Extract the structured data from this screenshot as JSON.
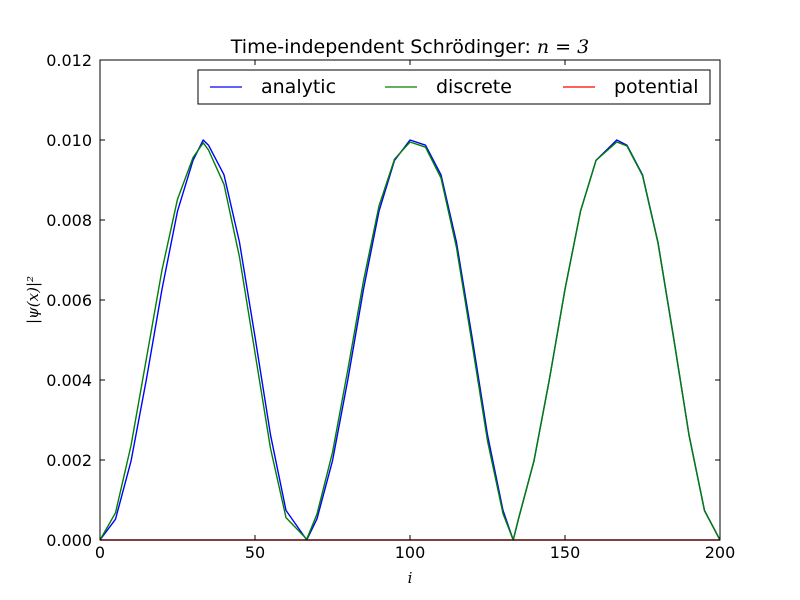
{
  "chart_data": {
    "type": "line",
    "title_prefix": "Time-independent Schrödinger: ",
    "title_math": "n = 3",
    "xlabel": "i",
    "ylabel": "|ψ(x)|²",
    "xlim": [
      0,
      200
    ],
    "ylim": [
      0,
      0.012
    ],
    "x_ticks": [
      0,
      50,
      100,
      150,
      200
    ],
    "x_tick_labels": [
      "0",
      "50",
      "100",
      "150",
      "200"
    ],
    "y_ticks": [
      0,
      0.002,
      0.004,
      0.006,
      0.008,
      0.01,
      0.012
    ],
    "y_tick_labels": [
      "0.000",
      "0.002",
      "0.004",
      "0.006",
      "0.008",
      "0.010",
      "0.012"
    ],
    "grid": false,
    "legend_placement": "top-right",
    "x": [
      0,
      5,
      10,
      15,
      20,
      25,
      30,
      33.3,
      35,
      40,
      45,
      50,
      55,
      60,
      66.7,
      70,
      75,
      80,
      85,
      90,
      95,
      100,
      105,
      110,
      115,
      120,
      125,
      130,
      133.3,
      135,
      140,
      145,
      150,
      155,
      160,
      166.7,
      170,
      175,
      180,
      185,
      190,
      195,
      200
    ],
    "series": [
      {
        "name": "analytic",
        "color": "#0000ff",
        "values": [
          0.0,
          0.00052,
          0.00197,
          0.00403,
          0.00627,
          0.00822,
          0.00949,
          0.01,
          0.00987,
          0.00913,
          0.00744,
          0.00508,
          0.00263,
          0.00074,
          0.0,
          0.00053,
          0.00198,
          0.00403,
          0.00627,
          0.00822,
          0.00949,
          0.01,
          0.00987,
          0.00913,
          0.00744,
          0.00508,
          0.00263,
          0.00074,
          0.0,
          0.00053,
          0.00198,
          0.00403,
          0.00627,
          0.00822,
          0.00949,
          0.01,
          0.00987,
          0.00913,
          0.00744,
          0.00508,
          0.00263,
          0.00074,
          0.0
        ]
      },
      {
        "name": "discrete",
        "color": "#008000",
        "values": [
          0.0,
          0.00068,
          0.00236,
          0.00455,
          0.00675,
          0.00852,
          0.00956,
          0.00993,
          0.00975,
          0.00889,
          0.00707,
          0.00468,
          0.00229,
          0.00056,
          2e-05,
          0.00065,
          0.00219,
          0.00428,
          0.00648,
          0.00835,
          0.00952,
          0.00995,
          0.00982,
          0.00905,
          0.00731,
          0.00492,
          0.00248,
          0.00066,
          0.0,
          0.00053,
          0.00198,
          0.00403,
          0.00627,
          0.00822,
          0.00949,
          0.00995,
          0.00985,
          0.00911,
          0.00742,
          0.00506,
          0.00262,
          0.00073,
          0.0
        ]
      },
      {
        "name": "potential",
        "color": "#ff0000",
        "values": [
          0,
          0,
          0,
          0,
          0,
          0,
          0,
          0,
          0,
          0,
          0,
          0,
          0,
          0,
          0,
          0,
          0,
          0,
          0,
          0,
          0,
          0,
          0,
          0,
          0,
          0,
          0,
          0,
          0,
          0,
          0,
          0,
          0,
          0,
          0,
          0,
          0,
          0,
          0,
          0,
          0,
          0,
          0
        ]
      }
    ]
  }
}
